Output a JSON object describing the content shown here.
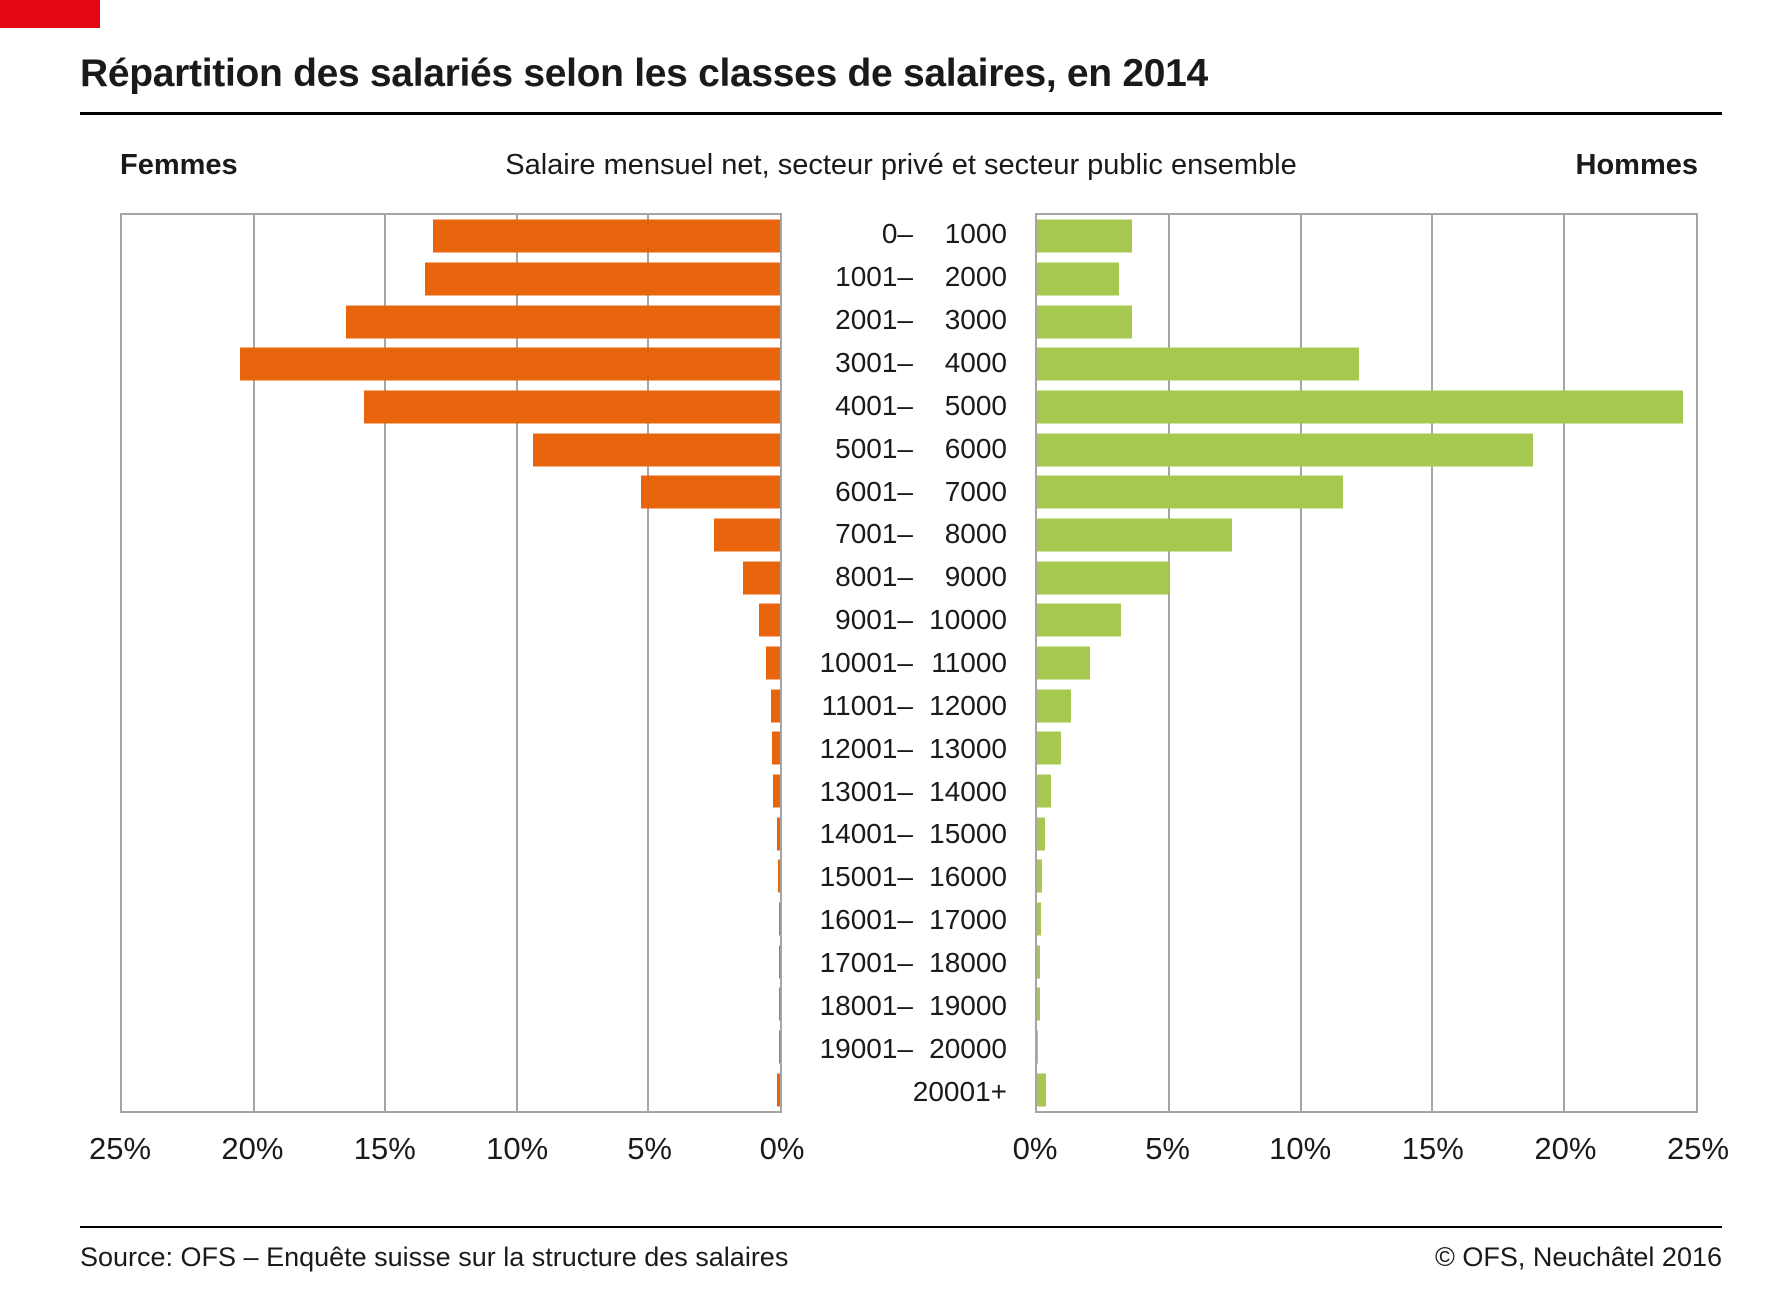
{
  "page": {
    "title": "Répartition des salariés selon les classes de salaires, en 2014",
    "subtitle": "Salaire mensuel net, secteur privé et secteur public ensemble",
    "left_header": "Femmes",
    "right_header": "Hommes",
    "source": "Source: OFS – Enquête suisse sur la structure des salaires",
    "copyright": "© OFS, Neuchâtel 2016"
  },
  "colors": {
    "femmes_orange": "#e8650d",
    "hommes_green": "#a6c850",
    "corner_red": "#e30613",
    "grid_gray": "#a5a5a5",
    "text": "#1a1a1a"
  },
  "chart_data": {
    "type": "bar",
    "layout": "population-pyramid",
    "title": "Répartition des salariés selon les classes de salaires, en 2014",
    "subtitle": "Salaire mensuel net, secteur privé et secteur public ensemble",
    "unit": "%",
    "categories": [
      "0–1000",
      "1001–2000",
      "2001–3000",
      "3001–4000",
      "4001–5000",
      "5001–6000",
      "6001–7000",
      "7001–8000",
      "8001–9000",
      "9001–10000",
      "10001–11000",
      "11001–12000",
      "12001–13000",
      "13001–14000",
      "14001–15000",
      "15001–16000",
      "16001–17000",
      "17001–18000",
      "18001–19000",
      "19001–20000",
      "20001+"
    ],
    "series": [
      {
        "name": "Femmes",
        "side": "left",
        "color": "#e8650d",
        "values": [
          13.2,
          13.5,
          16.5,
          20.5,
          15.8,
          9.4,
          5.3,
          2.5,
          1.4,
          0.8,
          0.55,
          0.35,
          0.3,
          0.25,
          0.12,
          0.08,
          0.05,
          0.05,
          0.04,
          0.03,
          0.1
        ]
      },
      {
        "name": "Hommes",
        "side": "right",
        "color": "#a6c850",
        "values": [
          3.6,
          3.1,
          3.6,
          12.2,
          24.5,
          18.8,
          11.6,
          7.4,
          5.0,
          3.2,
          2.0,
          1.3,
          0.9,
          0.55,
          0.3,
          0.2,
          0.15,
          0.1,
          0.1,
          0.05,
          0.35
        ]
      }
    ],
    "axis": {
      "min": 0,
      "max": 25,
      "ticks": [
        0,
        5,
        10,
        15,
        20,
        25
      ],
      "tick_suffix": "%",
      "grid": true,
      "left_axis_reversed": true
    }
  }
}
